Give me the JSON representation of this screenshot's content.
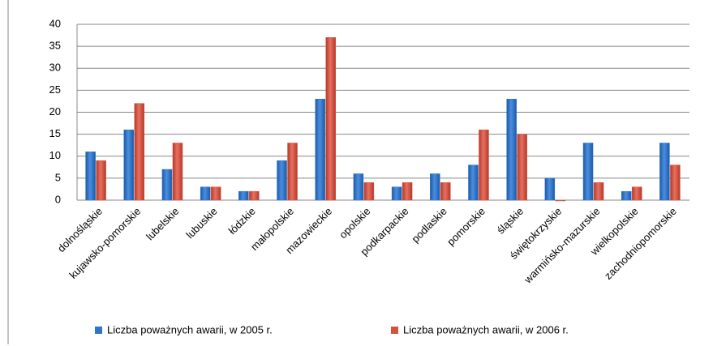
{
  "chart_data": {
    "type": "bar",
    "categories": [
      "dolnośląskie",
      "kujawsko-pomorskie",
      "lubelskie",
      "lubuskie",
      "łódzkie",
      "małopolskie",
      "mazowieckie",
      "opolskie",
      "podkarpackie",
      "podlaskie",
      "pomorskie",
      "śląskie",
      "świętokrzyskie",
      "warmińsko-mazurskie",
      "wielkopolskie",
      "zachodniopomorskie"
    ],
    "series": [
      {
        "name": "Liczba poważnych awarii, w 2005 r.",
        "color": "#2e75c8",
        "values": [
          11,
          16,
          7,
          3,
          2,
          9,
          23,
          6,
          3,
          6,
          8,
          23,
          5,
          13,
          2,
          13
        ]
      },
      {
        "name": "Liczba poważnych awarii, w 2006 r.",
        "color": "#d9503f",
        "values": [
          9,
          22,
          13,
          3,
          2,
          13,
          37,
          4,
          4,
          4,
          16,
          15,
          0,
          4,
          3,
          8
        ]
      }
    ],
    "ylim": [
      0,
      40
    ],
    "yticks": [
      0,
      5,
      10,
      15,
      20,
      25,
      30,
      35,
      40
    ],
    "grid": true,
    "legend": "bottom"
  }
}
